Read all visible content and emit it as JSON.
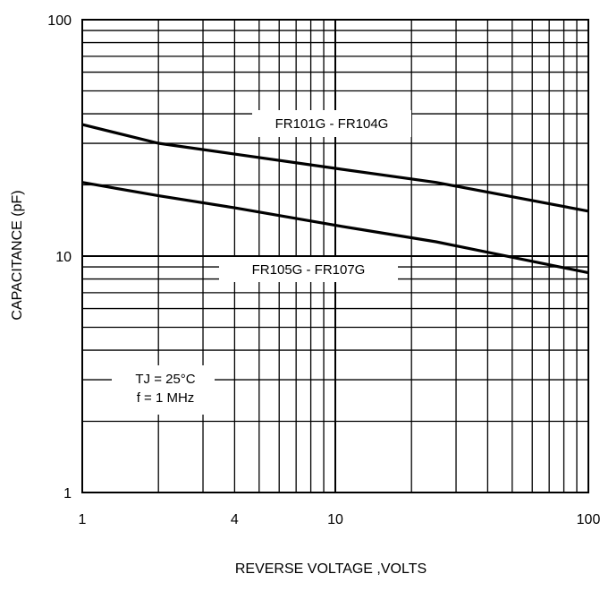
{
  "chart_data": {
    "type": "line",
    "xlabel": "REVERSE VOLTAGE ,VOLTS",
    "ylabel": "CAPACITANCE (pF)",
    "x_scale": "log",
    "y_scale": "log",
    "xlim": [
      1,
      100
    ],
    "ylim": [
      1,
      100
    ],
    "x_ticks": [
      {
        "value": 1,
        "label": "1"
      },
      {
        "value": 4,
        "label": "4"
      },
      {
        "value": 10,
        "label": "10"
      },
      {
        "value": 100,
        "label": "100"
      }
    ],
    "y_ticks": [
      {
        "value": 1,
        "label": "1"
      },
      {
        "value": 10,
        "label": "10"
      },
      {
        "value": 100,
        "label": "100"
      }
    ],
    "grid": true,
    "series": [
      {
        "name": "FR101G - FR104G",
        "x": [
          1,
          2,
          4,
          10,
          25,
          100
        ],
        "y": [
          36,
          30,
          27,
          23.5,
          20.5,
          15.5
        ]
      },
      {
        "name": "FR105G - FR107G",
        "x": [
          1,
          2,
          4,
          10,
          25,
          100
        ],
        "y": [
          20.5,
          18,
          16,
          13.5,
          11.5,
          8.5
        ]
      }
    ],
    "annotations": [
      {
        "id": "tj",
        "lines": [
          "TJ = 25°C",
          "f = 1 MHz"
        ]
      }
    ],
    "colors": {
      "line": "#000000",
      "grid": "#000000",
      "background": "#ffffff"
    }
  }
}
